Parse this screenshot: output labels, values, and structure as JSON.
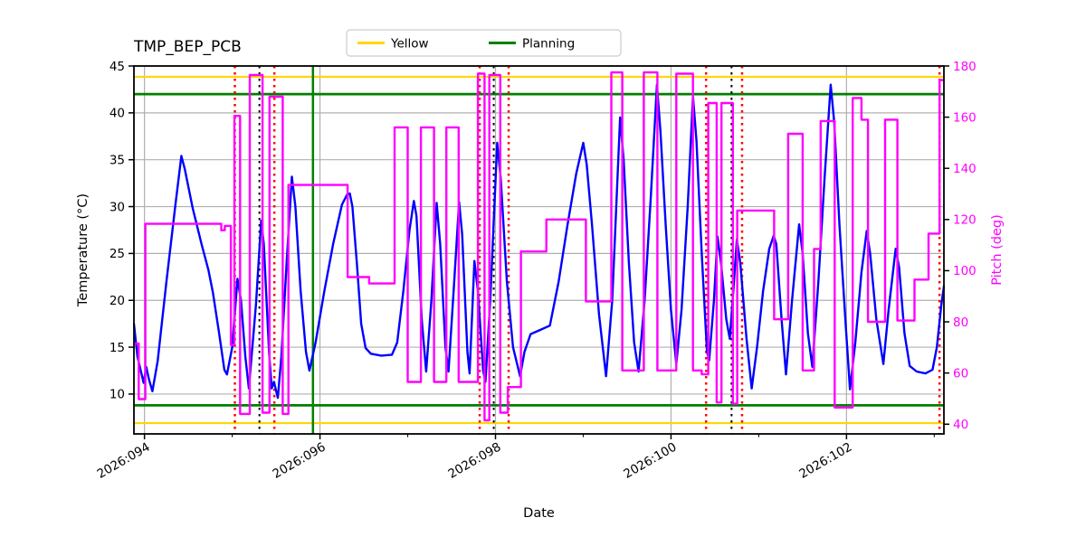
{
  "figure": {
    "title": "TMP_BEP_PCB",
    "xlabel": "Date",
    "ylabel_left": "Temperature (°C)",
    "ylabel_right": "Pitch (deg)",
    "legend": [
      {
        "label": "Yellow",
        "color": "#FFD700"
      },
      {
        "label": "Planning",
        "color": "#008000"
      }
    ]
  },
  "chart_data": {
    "type": "line",
    "title": "TMP_BEP_PCB",
    "xlabel": "Date",
    "grid": {
      "color": "#b0b0b0",
      "on": true
    },
    "legend_position": "top-center-outside",
    "x_axis": {
      "label": "Date",
      "domain": [
        93.88,
        103.11
      ],
      "major_ticks": [
        94,
        96,
        98,
        100,
        102
      ],
      "major_tick_labels": [
        "2026:094",
        "2026:096",
        "2026:098",
        "2026:100",
        "2026:102"
      ],
      "minor_ticks": [
        95,
        97,
        99,
        101,
        103
      ],
      "tick_label_rotation_deg": 30
    },
    "y_left": {
      "label": "Temperature (°C)",
      "range": [
        5.75,
        45
      ],
      "ticks": [
        10,
        15,
        20,
        25,
        30,
        35,
        40,
        45
      ],
      "tick_labels": [
        "10",
        "15",
        "20",
        "25",
        "30",
        "35",
        "40",
        "45"
      ],
      "color": "#000000"
    },
    "y_right": {
      "label": "Pitch (deg)",
      "range": [
        36.2,
        180
      ],
      "ticks": [
        40,
        60,
        80,
        100,
        120,
        140,
        160,
        180
      ],
      "tick_labels": [
        "40",
        "60",
        "80",
        "100",
        "120",
        "140",
        "160",
        "180"
      ],
      "color": "#FF00FF"
    },
    "limit_lines": [
      {
        "name": "yellow-high",
        "axis": "left",
        "value": 43.85,
        "color": "#FFD700",
        "lw": 2.2
      },
      {
        "name": "yellow-low",
        "axis": "left",
        "value": 6.9,
        "color": "#FFD700",
        "lw": 2.2
      },
      {
        "name": "planning-high",
        "axis": "left",
        "value": 42.0,
        "color": "#008000",
        "lw": 2.8
      },
      {
        "name": "planning-low",
        "axis": "left",
        "value": 8.8,
        "color": "#008000",
        "lw": 2.8
      }
    ],
    "event_lines": [
      {
        "t": 95.03,
        "color": "#FF0000",
        "style": "dotted",
        "lw": 2.5
      },
      {
        "t": 95.31,
        "color": "#000000",
        "style": "dotted",
        "lw": 2.0
      },
      {
        "t": 95.48,
        "color": "#FF0000",
        "style": "dotted",
        "lw": 2.5
      },
      {
        "t": 95.92,
        "color": "#008000",
        "style": "solid",
        "lw": 2.5
      },
      {
        "t": 97.82,
        "color": "#FF0000",
        "style": "dotted",
        "lw": 2.5
      },
      {
        "t": 97.98,
        "color": "#000000",
        "style": "dotted",
        "lw": 2.0
      },
      {
        "t": 98.15,
        "color": "#FF0000",
        "style": "dotted",
        "lw": 2.5
      },
      {
        "t": 100.4,
        "color": "#FF0000",
        "style": "dotted",
        "lw": 2.5
      },
      {
        "t": 100.69,
        "color": "#000000",
        "style": "dotted",
        "lw": 2.0
      },
      {
        "t": 100.81,
        "color": "#FF0000",
        "style": "dotted",
        "lw": 2.5
      },
      {
        "t": 103.06,
        "color": "#FF0000",
        "style": "dotted",
        "lw": 2.5
      }
    ],
    "series": [
      {
        "name": "Temperature",
        "axis": "left",
        "color": "#0000FF",
        "lw": 2.4,
        "points": [
          [
            93.88,
            17.5
          ],
          [
            93.92,
            14.0
          ],
          [
            93.99,
            11.2
          ],
          [
            94.02,
            12.9
          ],
          [
            94.05,
            11.6
          ],
          [
            94.09,
            10.3
          ],
          [
            94.15,
            13.5
          ],
          [
            94.25,
            22.0
          ],
          [
            94.35,
            30.0
          ],
          [
            94.42,
            35.4
          ],
          [
            94.46,
            34.0
          ],
          [
            94.55,
            29.8
          ],
          [
            94.65,
            26.0
          ],
          [
            94.73,
            23.2
          ],
          [
            94.78,
            20.8
          ],
          [
            94.85,
            16.5
          ],
          [
            94.91,
            12.6
          ],
          [
            94.94,
            12.1
          ],
          [
            95.0,
            15.0
          ],
          [
            95.06,
            22.3
          ],
          [
            95.1,
            20.0
          ],
          [
            95.15,
            14.0
          ],
          [
            95.19,
            10.6
          ],
          [
            95.27,
            19.5
          ],
          [
            95.33,
            28.5
          ],
          [
            95.36,
            26.0
          ],
          [
            95.42,
            14.5
          ],
          [
            95.45,
            10.6
          ],
          [
            95.475,
            11.3
          ],
          [
            95.52,
            9.6
          ],
          [
            95.56,
            14.0
          ],
          [
            95.62,
            24.0
          ],
          [
            95.68,
            33.2
          ],
          [
            95.72,
            30.0
          ],
          [
            95.78,
            21.0
          ],
          [
            95.84,
            14.5
          ],
          [
            95.88,
            12.5
          ],
          [
            95.95,
            15.5
          ],
          [
            96.05,
            21.0
          ],
          [
            96.15,
            26.0
          ],
          [
            96.25,
            30.2
          ],
          [
            96.31,
            31.3
          ],
          [
            96.34,
            31.4
          ],
          [
            96.37,
            30.0
          ],
          [
            96.42,
            24.0
          ],
          [
            96.47,
            17.5
          ],
          [
            96.52,
            14.9
          ],
          [
            96.58,
            14.3
          ],
          [
            96.7,
            14.1
          ],
          [
            96.82,
            14.2
          ],
          [
            96.88,
            15.5
          ],
          [
            96.95,
            21.0
          ],
          [
            97.02,
            27.5
          ],
          [
            97.07,
            30.6
          ],
          [
            97.1,
            29.0
          ],
          [
            97.16,
            18.0
          ],
          [
            97.21,
            12.4
          ],
          [
            97.27,
            20.0
          ],
          [
            97.33,
            30.4
          ],
          [
            97.37,
            26.0
          ],
          [
            97.43,
            15.0
          ],
          [
            97.465,
            12.4
          ],
          [
            97.53,
            22.0
          ],
          [
            97.585,
            30.5
          ],
          [
            97.62,
            27.0
          ],
          [
            97.68,
            14.5
          ],
          [
            97.705,
            12.2
          ],
          [
            97.76,
            24.2
          ],
          [
            97.8,
            21.0
          ],
          [
            97.86,
            12.5
          ],
          [
            97.885,
            11.3
          ],
          [
            97.94,
            20.0
          ],
          [
            98.02,
            36.8
          ],
          [
            98.06,
            33.0
          ],
          [
            98.13,
            22.0
          ],
          [
            98.2,
            15.0
          ],
          [
            98.28,
            11.9
          ],
          [
            98.33,
            14.5
          ],
          [
            98.4,
            16.4
          ],
          [
            98.5,
            16.8
          ],
          [
            98.62,
            17.3
          ],
          [
            98.72,
            22.0
          ],
          [
            98.82,
            28.0
          ],
          [
            98.92,
            33.5
          ],
          [
            99.0,
            36.8
          ],
          [
            99.04,
            34.5
          ],
          [
            99.1,
            28.0
          ],
          [
            99.18,
            18.5
          ],
          [
            99.26,
            11.9
          ],
          [
            99.33,
            20.0
          ],
          [
            99.42,
            39.5
          ],
          [
            99.46,
            35.0
          ],
          [
            99.52,
            24.0
          ],
          [
            99.58,
            15.5
          ],
          [
            99.63,
            12.4
          ],
          [
            99.7,
            20.0
          ],
          [
            99.77,
            31.0
          ],
          [
            99.84,
            43.0
          ],
          [
            99.88,
            38.0
          ],
          [
            99.94,
            28.0
          ],
          [
            100.0,
            19.0
          ],
          [
            100.06,
            13.2
          ],
          [
            100.12,
            19.0
          ],
          [
            100.19,
            30.0
          ],
          [
            100.25,
            41.8
          ],
          [
            100.29,
            37.0
          ],
          [
            100.35,
            25.0
          ],
          [
            100.41,
            14.5
          ],
          [
            100.435,
            13.6
          ],
          [
            100.49,
            20.0
          ],
          [
            100.53,
            26.8
          ],
          [
            100.57,
            24.0
          ],
          [
            100.63,
            18.0
          ],
          [
            100.67,
            15.9
          ],
          [
            100.71,
            21.0
          ],
          [
            100.75,
            26.5
          ],
          [
            100.79,
            24.0
          ],
          [
            100.86,
            16.0
          ],
          [
            100.92,
            10.6
          ],
          [
            100.98,
            15.0
          ],
          [
            101.05,
            21.0
          ],
          [
            101.12,
            25.5
          ],
          [
            101.17,
            26.9
          ],
          [
            101.2,
            26.0
          ],
          [
            101.26,
            18.0
          ],
          [
            101.31,
            12.1
          ],
          [
            101.38,
            20.0
          ],
          [
            101.46,
            28.1
          ],
          [
            101.5,
            25.0
          ],
          [
            101.56,
            16.5
          ],
          [
            101.61,
            12.9
          ],
          [
            101.68,
            22.0
          ],
          [
            101.75,
            33.0
          ],
          [
            101.82,
            43.0
          ],
          [
            101.86,
            39.0
          ],
          [
            101.92,
            28.0
          ],
          [
            101.99,
            17.5
          ],
          [
            102.04,
            10.5
          ],
          [
            102.1,
            15.5
          ],
          [
            102.17,
            23.0
          ],
          [
            102.23,
            27.4
          ],
          [
            102.27,
            25.0
          ],
          [
            102.34,
            18.0
          ],
          [
            102.42,
            13.2
          ],
          [
            102.48,
            19.0
          ],
          [
            102.56,
            25.5
          ],
          [
            102.6,
            23.5
          ],
          [
            102.66,
            16.5
          ],
          [
            102.72,
            13.0
          ],
          [
            102.8,
            12.4
          ],
          [
            102.9,
            12.2
          ],
          [
            102.98,
            12.6
          ],
          [
            103.03,
            15.0
          ],
          [
            103.08,
            19.5
          ],
          [
            103.11,
            21.5
          ]
        ]
      },
      {
        "name": "Pitch",
        "axis": "right",
        "color": "#FF00FF",
        "lw": 2.4,
        "type": "steps",
        "segments": [
          [
            93.88,
            93.935,
            71.5
          ],
          [
            93.935,
            94.01,
            49.8
          ],
          [
            94.01,
            94.875,
            118.3
          ],
          [
            94.875,
            94.915,
            115.8
          ],
          [
            94.915,
            94.985,
            117.5
          ],
          [
            94.985,
            95.025,
            71
          ],
          [
            95.025,
            95.09,
            160.5
          ],
          [
            95.09,
            95.2,
            44
          ],
          [
            95.2,
            95.345,
            176.5
          ],
          [
            95.345,
            95.425,
            44.5
          ],
          [
            95.425,
            95.575,
            168
          ],
          [
            95.575,
            95.64,
            44
          ],
          [
            95.64,
            96.315,
            133.5
          ],
          [
            96.315,
            96.56,
            97.5
          ],
          [
            96.56,
            96.85,
            95
          ],
          [
            96.85,
            97.0,
            156
          ],
          [
            97.0,
            97.15,
            56.5
          ],
          [
            97.15,
            97.3,
            156
          ],
          [
            97.3,
            97.44,
            56.5
          ],
          [
            97.44,
            97.58,
            156
          ],
          [
            97.58,
            97.8,
            56.5
          ],
          [
            97.8,
            97.875,
            177
          ],
          [
            97.875,
            97.93,
            41.5
          ],
          [
            97.93,
            98.055,
            176.5
          ],
          [
            98.055,
            98.14,
            44.5
          ],
          [
            98.14,
            98.29,
            54.5
          ],
          [
            98.29,
            98.58,
            107.5
          ],
          [
            98.58,
            99.03,
            120
          ],
          [
            99.03,
            99.32,
            88
          ],
          [
            99.32,
            99.445,
            177.5
          ],
          [
            99.445,
            99.69,
            61
          ],
          [
            99.69,
            99.845,
            177.5
          ],
          [
            99.845,
            100.06,
            61
          ],
          [
            100.06,
            100.25,
            177
          ],
          [
            100.25,
            100.35,
            61
          ],
          [
            100.35,
            100.425,
            59.5
          ],
          [
            100.425,
            100.52,
            165.5
          ],
          [
            100.52,
            100.575,
            48.5
          ],
          [
            100.575,
            100.705,
            165.5
          ],
          [
            100.705,
            100.755,
            48
          ],
          [
            100.755,
            101.175,
            123.5
          ],
          [
            101.175,
            101.335,
            81
          ],
          [
            101.335,
            101.5,
            153.5
          ],
          [
            101.5,
            101.63,
            61
          ],
          [
            101.63,
            101.705,
            108.5
          ],
          [
            101.705,
            101.865,
            158.5
          ],
          [
            101.865,
            102.07,
            46.5
          ],
          [
            102.07,
            102.17,
            167.5
          ],
          [
            102.17,
            102.245,
            159
          ],
          [
            102.245,
            102.44,
            80
          ],
          [
            102.44,
            102.58,
            159
          ],
          [
            102.58,
            102.775,
            80.5
          ],
          [
            102.775,
            102.935,
            96.5
          ],
          [
            102.935,
            103.06,
            114.5
          ],
          [
            103.06,
            103.11,
            174.5
          ]
        ]
      }
    ]
  }
}
